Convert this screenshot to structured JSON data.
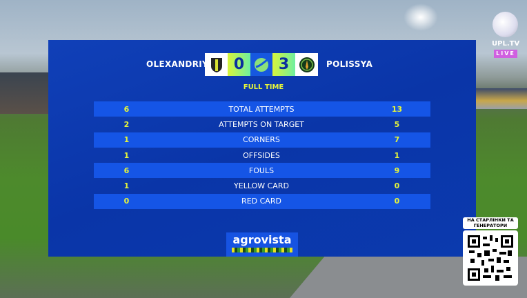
{
  "match": {
    "home_team": "OLEXANDRIYA",
    "away_team": "POLISSYA",
    "home_score": "0",
    "away_score": "3",
    "status": "FULL TIME"
  },
  "stats": [
    {
      "home": "6",
      "label": "TOTAL ATTEMPTS",
      "away": "13"
    },
    {
      "home": "2",
      "label": "ATTEMPTS ON TARGET",
      "away": "5"
    },
    {
      "home": "1",
      "label": "CORNERS",
      "away": "7"
    },
    {
      "home": "1",
      "label": "OFFSIDES",
      "away": "1"
    },
    {
      "home": "6",
      "label": "FOULS",
      "away": "9"
    },
    {
      "home": "1",
      "label": "YELLOW CARD",
      "away": "0"
    },
    {
      "home": "0",
      "label": "RED CARD",
      "away": "0"
    }
  ],
  "sponsor": "agrovista",
  "broadcaster": {
    "name": "UPL.TV",
    "live": "LIVE"
  },
  "promo": {
    "text": "НА СТАРЛІНКИ ТА ГЕНЕРАТОРИ"
  },
  "colors": {
    "panel": "#0a35a8",
    "row_highlight": "#1555e6",
    "accent": "#e6f53a",
    "live": "#d060e0"
  }
}
